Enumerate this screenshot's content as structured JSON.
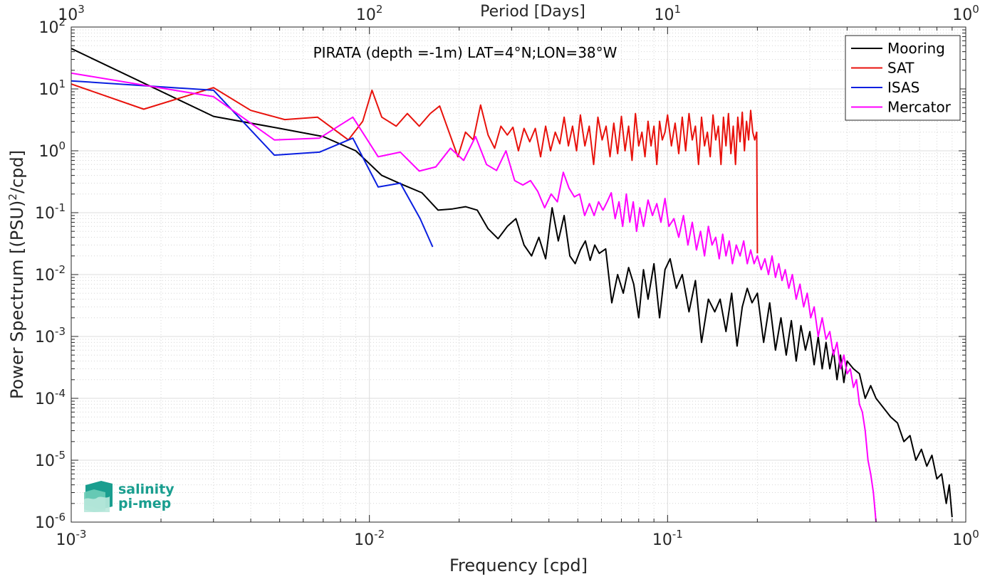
{
  "chart_data": {
    "type": "line",
    "title": "PIRATA (depth =-1m) LAT=4°N;LON=38°W",
    "xlabel": "Frequency [cpd]",
    "ylabel_main": "Power Spectrum [(PSU)",
    "ylabel_sup": "2",
    "ylabel_tail": "/cpd]",
    "top_xlabel": "Period [Days]",
    "xscale": "log",
    "yscale": "log",
    "xlim": [
      0.001,
      1
    ],
    "ylim": [
      1e-06,
      100
    ],
    "grid": true,
    "legend_position": "top-right",
    "x_ticks": [
      {
        "value": 0.001,
        "base": "10",
        "exp": "-3"
      },
      {
        "value": 0.01,
        "base": "10",
        "exp": "-2"
      },
      {
        "value": 0.1,
        "base": "10",
        "exp": "-1"
      },
      {
        "value": 1,
        "base": "10",
        "exp": "0"
      }
    ],
    "top_ticks": [
      {
        "value": 0.001,
        "base": "10",
        "exp": "3"
      },
      {
        "value": 0.01,
        "base": "10",
        "exp": "2"
      },
      {
        "value": 0.1,
        "base": "10",
        "exp": "1"
      },
      {
        "value": 1,
        "base": "10",
        "exp": "0"
      }
    ],
    "y_ticks": [
      {
        "value": 100,
        "base": "10",
        "exp": "2"
      },
      {
        "value": 10,
        "base": "10",
        "exp": "1"
      },
      {
        "value": 1,
        "base": "10",
        "exp": "0"
      },
      {
        "value": 0.1,
        "base": "10",
        "exp": "-1"
      },
      {
        "value": 0.01,
        "base": "10",
        "exp": "-2"
      },
      {
        "value": 0.001,
        "base": "10",
        "exp": "-3"
      },
      {
        "value": 0.0001,
        "base": "10",
        "exp": "-4"
      },
      {
        "value": 1e-05,
        "base": "10",
        "exp": "-5"
      },
      {
        "value": 1e-06,
        "base": "10",
        "exp": "-6"
      }
    ],
    "series": [
      {
        "name": "Mooring",
        "color": "#000000",
        "x": [
          0.001,
          0.003,
          0.005,
          0.007,
          0.009,
          0.011,
          0.013,
          0.015,
          0.017,
          0.019,
          0.021,
          0.023,
          0.025,
          0.027,
          0.029,
          0.031,
          0.033,
          0.035,
          0.037,
          0.039,
          0.041,
          0.043,
          0.045,
          0.047,
          0.049,
          0.051,
          0.053,
          0.055,
          0.057,
          0.059,
          0.062,
          0.065,
          0.068,
          0.071,
          0.074,
          0.077,
          0.08,
          0.083,
          0.086,
          0.09,
          0.094,
          0.098,
          0.102,
          0.107,
          0.112,
          0.118,
          0.124,
          0.13,
          0.137,
          0.144,
          0.15,
          0.157,
          0.164,
          0.171,
          0.178,
          0.185,
          0.192,
          0.2,
          0.21,
          0.22,
          0.23,
          0.24,
          0.25,
          0.26,
          0.27,
          0.28,
          0.29,
          0.3,
          0.31,
          0.32,
          0.33,
          0.34,
          0.35,
          0.36,
          0.37,
          0.38,
          0.39,
          0.4,
          0.42,
          0.44,
          0.46,
          0.48,
          0.5,
          0.53,
          0.56,
          0.59,
          0.62,
          0.65,
          0.68,
          0.71,
          0.74,
          0.77,
          0.8,
          0.83,
          0.86,
          0.88,
          0.9
        ],
        "y": [
          45,
          3.6,
          2.3,
          1.7,
          1.0,
          0.4,
          0.28,
          0.21,
          0.11,
          0.115,
          0.125,
          0.11,
          0.055,
          0.038,
          0.06,
          0.08,
          0.03,
          0.02,
          0.04,
          0.018,
          0.12,
          0.035,
          0.09,
          0.02,
          0.015,
          0.025,
          0.035,
          0.017,
          0.03,
          0.022,
          0.026,
          0.0035,
          0.01,
          0.005,
          0.013,
          0.007,
          0.002,
          0.012,
          0.004,
          0.015,
          0.002,
          0.012,
          0.018,
          0.006,
          0.01,
          0.0025,
          0.008,
          0.0008,
          0.004,
          0.0025,
          0.004,
          0.0012,
          0.005,
          0.0007,
          0.003,
          0.006,
          0.0035,
          0.005,
          0.0008,
          0.0035,
          0.0006,
          0.002,
          0.0005,
          0.0018,
          0.0004,
          0.0015,
          0.0006,
          0.0012,
          0.00035,
          0.001,
          0.0003,
          0.0008,
          0.0003,
          0.0006,
          0.0002,
          0.0005,
          0.00018,
          0.0004,
          0.0003,
          0.00025,
          0.0001,
          0.00016,
          0.0001,
          7e-05,
          5e-05,
          4e-05,
          2e-05,
          2.5e-05,
          1e-05,
          1.5e-05,
          8e-06,
          1.2e-05,
          5e-06,
          6e-06,
          2e-06,
          4e-06,
          1.2e-06
        ]
      },
      {
        "name": "SAT",
        "color": "#e8120c",
        "x": [
          0.001,
          0.00175,
          0.003,
          0.004,
          0.0052,
          0.0067,
          0.0085,
          0.0095,
          0.0102,
          0.011,
          0.0123,
          0.0134,
          0.0147,
          0.016,
          0.0172,
          0.0185,
          0.0198,
          0.021,
          0.0223,
          0.0236,
          0.025,
          0.0263,
          0.0276,
          0.029,
          0.0303,
          0.0316,
          0.033,
          0.0345,
          0.036,
          0.0375,
          0.039,
          0.0405,
          0.042,
          0.0435,
          0.045,
          0.0465,
          0.048,
          0.0495,
          0.051,
          0.0528,
          0.0546,
          0.0565,
          0.0584,
          0.0603,
          0.0622,
          0.0641,
          0.066,
          0.068,
          0.07,
          0.072,
          0.074,
          0.076,
          0.078,
          0.08,
          0.082,
          0.084,
          0.086,
          0.088,
          0.09,
          0.092,
          0.094,
          0.096,
          0.098,
          0.1,
          0.103,
          0.106,
          0.109,
          0.112,
          0.115,
          0.118,
          0.121,
          0.124,
          0.127,
          0.13,
          0.133,
          0.136,
          0.139,
          0.142,
          0.145,
          0.148,
          0.151,
          0.154,
          0.157,
          0.16,
          0.163,
          0.166,
          0.169,
          0.172,
          0.175,
          0.178,
          0.181,
          0.184,
          0.187,
          0.19,
          0.193,
          0.196,
          0.199,
          0.2
        ],
        "y": [
          12,
          4.7,
          10.5,
          4.5,
          3.2,
          3.5,
          1.5,
          3.0,
          9.5,
          3.5,
          2.5,
          4.0,
          2.5,
          4.0,
          5.3,
          2.0,
          0.8,
          2.0,
          1.5,
          5.5,
          1.8,
          1.1,
          2.5,
          1.8,
          2.4,
          1.0,
          2.3,
          1.4,
          2.3,
          0.8,
          2.5,
          1.0,
          2.0,
          1.3,
          3.5,
          1.2,
          2.5,
          1.0,
          3.8,
          1.2,
          2.5,
          0.6,
          3.5,
          1.5,
          2.5,
          0.8,
          2.8,
          0.9,
          3.6,
          1.0,
          2.5,
          0.7,
          4.0,
          1.2,
          2.0,
          0.8,
          3.0,
          1.2,
          2.5,
          0.6,
          3.0,
          1.5,
          2.0,
          3.8,
          1.2,
          2.8,
          0.9,
          3.5,
          1.0,
          4.0,
          1.5,
          2.5,
          0.6,
          3.5,
          1.2,
          2.0,
          0.8,
          3.8,
          1.5,
          2.5,
          0.6,
          3.5,
          1.2,
          4.0,
          0.9,
          2.5,
          0.6,
          3.5,
          1.4,
          4.2,
          1.0,
          3.0,
          1.5,
          4.5,
          2.0,
          1.5,
          2.0,
          0.022
        ]
      },
      {
        "name": "ISAS",
        "color": "#0a1fe0",
        "x": [
          0.001,
          0.003,
          0.0048,
          0.0068,
          0.0088,
          0.0107,
          0.0127,
          0.0148,
          0.0163
        ],
        "y": [
          13.5,
          9.5,
          0.85,
          0.95,
          1.6,
          0.26,
          0.3,
          0.08,
          0.028
        ]
      },
      {
        "name": "Mercator",
        "color": "#ff00ff",
        "x": [
          0.001,
          0.003,
          0.0048,
          0.0068,
          0.0088,
          0.0107,
          0.0127,
          0.0147,
          0.0167,
          0.0187,
          0.0207,
          0.0227,
          0.0247,
          0.0267,
          0.0287,
          0.0307,
          0.0327,
          0.0347,
          0.0367,
          0.0387,
          0.0407,
          0.0427,
          0.0447,
          0.0467,
          0.0487,
          0.0507,
          0.0527,
          0.0547,
          0.0567,
          0.0587,
          0.0607,
          0.0627,
          0.0647,
          0.0667,
          0.0687,
          0.0707,
          0.0727,
          0.0747,
          0.0767,
          0.0787,
          0.0807,
          0.083,
          0.086,
          0.089,
          0.092,
          0.095,
          0.098,
          0.101,
          0.105,
          0.109,
          0.113,
          0.117,
          0.121,
          0.125,
          0.129,
          0.133,
          0.137,
          0.141,
          0.145,
          0.149,
          0.153,
          0.157,
          0.161,
          0.165,
          0.17,
          0.175,
          0.18,
          0.185,
          0.19,
          0.195,
          0.2,
          0.206,
          0.212,
          0.218,
          0.224,
          0.23,
          0.236,
          0.242,
          0.248,
          0.255,
          0.262,
          0.27,
          0.278,
          0.286,
          0.294,
          0.302,
          0.31,
          0.32,
          0.33,
          0.34,
          0.35,
          0.36,
          0.37,
          0.38,
          0.39,
          0.4,
          0.41,
          0.42,
          0.43,
          0.44,
          0.45,
          0.46,
          0.47,
          0.48,
          0.49,
          0.5
        ],
        "y": [
          18,
          7.5,
          1.5,
          1.6,
          3.5,
          0.8,
          0.95,
          0.47,
          0.55,
          1.1,
          0.7,
          1.7,
          0.6,
          0.48,
          1.0,
          0.33,
          0.28,
          0.33,
          0.22,
          0.12,
          0.2,
          0.15,
          0.45,
          0.25,
          0.18,
          0.2,
          0.09,
          0.14,
          0.09,
          0.15,
          0.11,
          0.15,
          0.21,
          0.08,
          0.15,
          0.06,
          0.2,
          0.07,
          0.15,
          0.05,
          0.12,
          0.06,
          0.16,
          0.09,
          0.14,
          0.07,
          0.17,
          0.06,
          0.08,
          0.04,
          0.09,
          0.03,
          0.07,
          0.025,
          0.05,
          0.02,
          0.06,
          0.03,
          0.04,
          0.018,
          0.045,
          0.02,
          0.035,
          0.015,
          0.03,
          0.02,
          0.035,
          0.015,
          0.025,
          0.015,
          0.02,
          0.012,
          0.018,
          0.01,
          0.02,
          0.009,
          0.015,
          0.008,
          0.012,
          0.006,
          0.01,
          0.004,
          0.007,
          0.003,
          0.005,
          0.002,
          0.003,
          0.001,
          0.002,
          0.0009,
          0.0012,
          0.0005,
          0.0008,
          0.0003,
          0.0005,
          0.00025,
          0.0003,
          0.00015,
          0.0002,
          8e-05,
          6e-05,
          3e-05,
          1e-05,
          6e-06,
          3e-06,
          1e-06
        ]
      }
    ]
  },
  "logo": {
    "line1": "salinity",
    "line2": "pi-mep",
    "color": "#1a9e8f"
  }
}
